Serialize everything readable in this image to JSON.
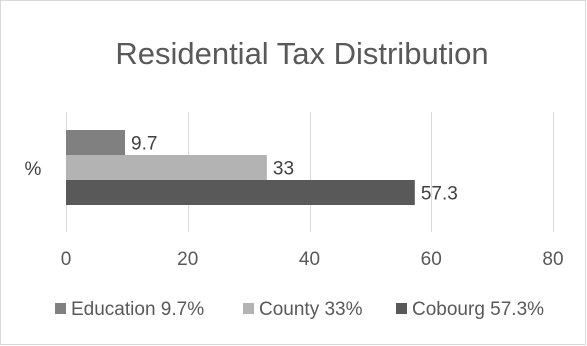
{
  "chart_data": {
    "type": "bar",
    "orientation": "horizontal",
    "title": "Residential Tax Distribution",
    "categories": [
      "%"
    ],
    "series": [
      {
        "name": "Education 9.7%",
        "values": [
          9.7
        ],
        "color": "#808080",
        "label": "9.7"
      },
      {
        "name": "County 33%",
        "values": [
          33
        ],
        "color": "#b3b3b3",
        "label": "33"
      },
      {
        "name": "Cobourg 57.3%",
        "values": [
          57.3
        ],
        "color": "#595959",
        "label": "57.3"
      }
    ],
    "xlim": [
      0,
      80
    ],
    "xticks": [
      "0",
      "20",
      "40",
      "60",
      "80"
    ],
    "grid": true,
    "legend_position": "bottom"
  }
}
